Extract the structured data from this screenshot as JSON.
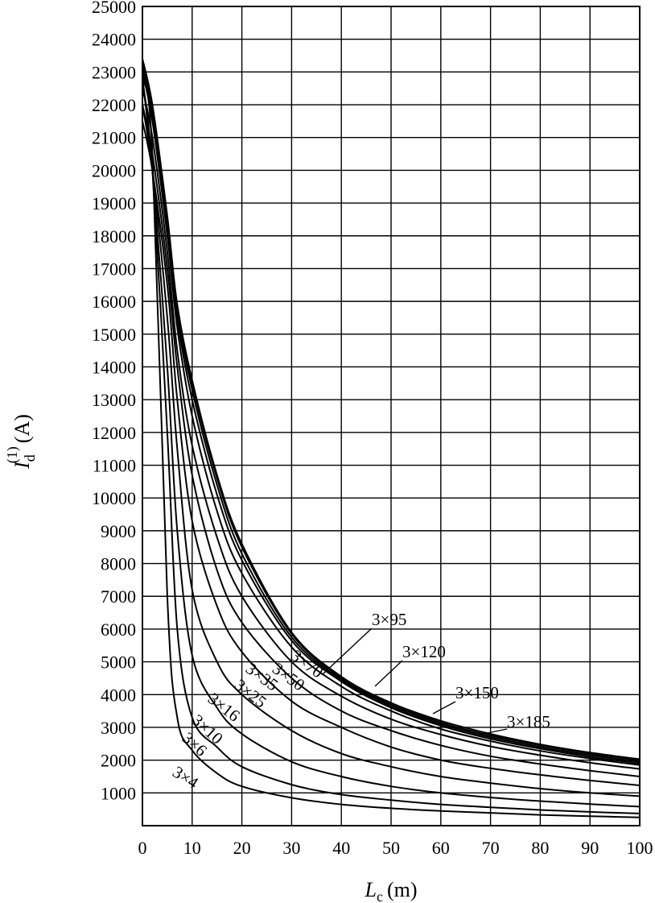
{
  "chart_data": {
    "type": "line",
    "title": "",
    "xlabel": {
      "main": "L",
      "sub": "c",
      "unit": "(m)"
    },
    "ylabel": {
      "main": "I",
      "sub": "d",
      "sup": "(1)",
      "unit": "(A)"
    },
    "xlim": [
      0,
      100
    ],
    "ylim": [
      0,
      25000
    ],
    "grid": true,
    "x_ticks": [
      0,
      10,
      20,
      30,
      40,
      50,
      60,
      70,
      80,
      90,
      100
    ],
    "y_ticks": [
      1000,
      2000,
      3000,
      4000,
      5000,
      6000,
      7000,
      8000,
      9000,
      10000,
      11000,
      12000,
      13000,
      14000,
      15000,
      16000,
      17000,
      18000,
      19000,
      20000,
      21000,
      22000,
      23000,
      24000,
      25000
    ],
    "x": [
      0,
      2,
      5,
      7,
      10,
      15,
      20,
      30,
      40,
      50,
      60,
      70,
      80,
      90,
      100
    ],
    "series": [
      {
        "name": "3×4",
        "values": [
          22800,
          20500,
          7000,
          3300,
          2300,
          1600,
          1200,
          850,
          650,
          530,
          450,
          390,
          330,
          290,
          250
        ]
      },
      {
        "name": "3×6",
        "values": [
          22800,
          20000,
          12000,
          6000,
          3300,
          2400,
          1800,
          1250,
          950,
          780,
          650,
          560,
          480,
          420,
          370
        ]
      },
      {
        "name": "3×10",
        "values": [
          22800,
          20000,
          14000,
          9000,
          5200,
          3600,
          2800,
          1950,
          1500,
          1200,
          1000,
          860,
          750,
          660,
          580
        ]
      },
      {
        "name": "3×16",
        "values": [
          22000,
          20000,
          15500,
          11500,
          7200,
          5000,
          4000,
          2900,
          2200,
          1800,
          1500,
          1300,
          1130,
          1000,
          900
        ]
      },
      {
        "name": "3×25",
        "values": [
          21500,
          20000,
          16500,
          13000,
          9300,
          6700,
          5300,
          3800,
          3000,
          2400,
          2000,
          1750,
          1550,
          1380,
          1230
        ]
      },
      {
        "name": "3×35",
        "values": [
          22000,
          20500,
          17000,
          14000,
          10700,
          7800,
          6200,
          4500,
          3500,
          2900,
          2450,
          2120,
          1880,
          1680,
          1500
        ]
      },
      {
        "name": "3×50",
        "values": [
          22500,
          21000,
          17500,
          14500,
          11600,
          8800,
          7000,
          5000,
          3950,
          3250,
          2780,
          2420,
          2150,
          1920,
          1730
        ]
      },
      {
        "name": "3×70",
        "values": [
          23000,
          21500,
          18000,
          15200,
          12500,
          9600,
          7700,
          5450,
          4250,
          3500,
          2950,
          2580,
          2280,
          2050,
          1850
        ]
      },
      {
        "name": "3×95",
        "values": [
          23200,
          21700,
          18300,
          15500,
          13000,
          10100,
          8100,
          5650,
          4400,
          3600,
          3050,
          2650,
          2350,
          2100,
          1900
        ]
      },
      {
        "name": "3×120",
        "values": [
          23300,
          21800,
          18400,
          15700,
          13300,
          10400,
          8300,
          5750,
          4450,
          3650,
          3100,
          2700,
          2400,
          2150,
          1950
        ]
      },
      {
        "name": "3×150",
        "values": [
          23400,
          21900,
          18500,
          15800,
          13500,
          10600,
          8500,
          5850,
          4500,
          3700,
          3150,
          2750,
          2450,
          2200,
          2000
        ]
      },
      {
        "name": "3×185",
        "values": [
          23400,
          22000,
          18600,
          15900,
          13600,
          10700,
          8600,
          5900,
          4550,
          3750,
          3200,
          2800,
          2480,
          2230,
          2030
        ]
      }
    ]
  }
}
